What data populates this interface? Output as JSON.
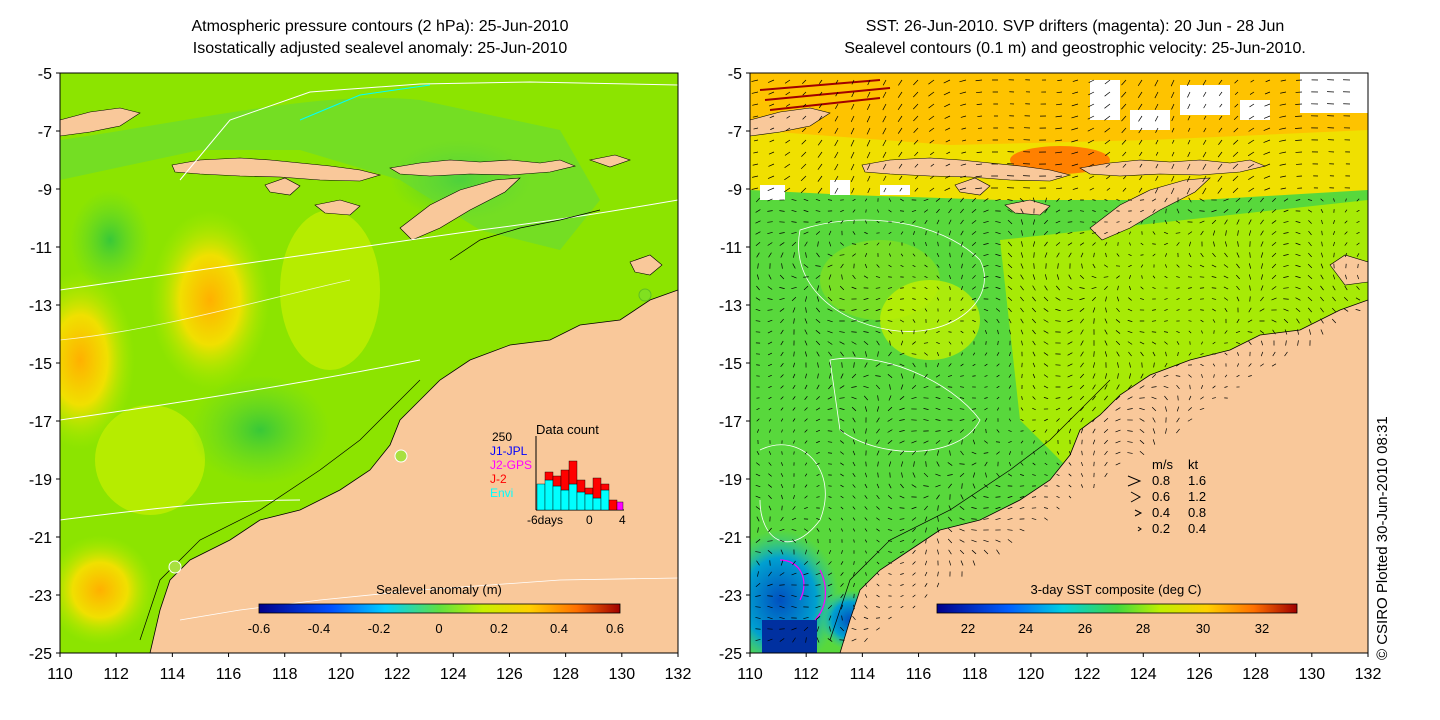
{
  "left_panel": {
    "title_line1": "Atmospheric pressure contours (2 hPa): 25-Jun-2010",
    "title_line2": "Isostatically adjusted sealevel anomaly: 25-Jun-2010",
    "colorbar_label": "Sealevel anomaly (m)",
    "colorbar_ticks": [
      "-0.6",
      "-0.4",
      "-0.2",
      "0",
      "0.2",
      "0.4",
      "0.6"
    ],
    "inset": {
      "title": "Data count",
      "max_label": "250",
      "legend": [
        {
          "label": "J1-JPL",
          "color": "#0000ff"
        },
        {
          "label": "J2-GPS",
          "color": "#ff00ff"
        },
        {
          "label": "J-2",
          "color": "#ff0000"
        },
        {
          "label": "Envi",
          "color": "#00ffff"
        }
      ],
      "x_labels": [
        "-6days",
        "0",
        "4"
      ]
    }
  },
  "right_panel": {
    "title_line1": "SST: 26-Jun-2010. SVP drifters (magenta): 20 Jun - 28 Jun",
    "title_line2": "Sealevel contours (0.1 m) and geostrophic velocity: 25-Jun-2010.",
    "colorbar_label": "3-day SST composite (deg C)",
    "colorbar_ticks": [
      "22",
      "24",
      "26",
      "28",
      "30",
      "32"
    ],
    "speed_legend": {
      "header_ms": "m/s",
      "header_kt": "kt",
      "rows": [
        {
          "ms": "0.8",
          "kt": "1.6"
        },
        {
          "ms": "0.6",
          "kt": "1.2"
        },
        {
          "ms": "0.4",
          "kt": "0.8"
        },
        {
          "ms": "0.2",
          "kt": "0.4"
        }
      ]
    }
  },
  "axes": {
    "y_ticks": [
      "-5",
      "-7",
      "-9",
      "-11",
      "-13",
      "-15",
      "-17",
      "-19",
      "-21",
      "-23",
      "-25"
    ],
    "x_ticks": [
      "110",
      "112",
      "114",
      "116",
      "118",
      "120",
      "122",
      "124",
      "126",
      "128",
      "130",
      "132"
    ]
  },
  "credit": "© CSIRO Plotted 30-Jun-2010 08:31",
  "colors": {
    "land": "#f9c89a",
    "ocean_green": "#7fe000",
    "sst_green": "#5ed83a"
  }
}
